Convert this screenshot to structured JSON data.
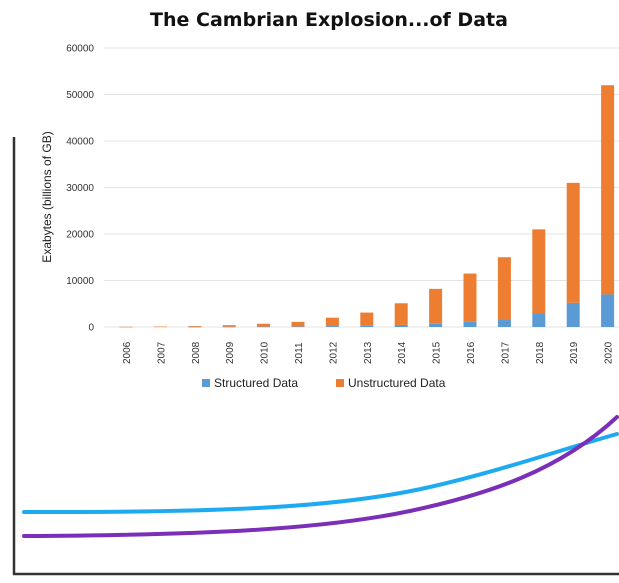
{
  "chart_data": {
    "type": "bar",
    "stacked": true,
    "title": "The Cambrian Explosion...of Data",
    "xlabel": "",
    "ylabel": "Exabytes (billions of GB)",
    "ylim": [
      0,
      60000
    ],
    "yticks": [
      0,
      10000,
      20000,
      30000,
      40000,
      50000,
      60000
    ],
    "ytick_labels": [
      "0",
      "10000",
      "20000",
      "30000",
      "40000",
      "50000",
      "60000"
    ],
    "grid": true,
    "legend_position": "bottom",
    "categories": [
      "2006",
      "2007",
      "2008",
      "2009",
      "2010",
      "2011",
      "2012",
      "2013",
      "2014",
      "2015",
      "2016",
      "2017",
      "2018",
      "2019",
      "2020"
    ],
    "series": [
      {
        "name": "Structured Data",
        "color": "#5b9bd5",
        "values": [
          0,
          0,
          50,
          60,
          90,
          120,
          200,
          280,
          450,
          700,
          1100,
          1500,
          3000,
          5200,
          7000
        ]
      },
      {
        "name": "Unstructured Data",
        "color": "#ed7d31",
        "values": [
          50,
          100,
          150,
          340,
          610,
          980,
          1800,
          2820,
          4650,
          7500,
          10400,
          13500,
          18000,
          25800,
          45000
        ]
      }
    ]
  },
  "decor": {
    "frame_color": "#333333",
    "curve_1_color": "#1eaaf1",
    "curve_2_color": "#7b2fb8"
  }
}
